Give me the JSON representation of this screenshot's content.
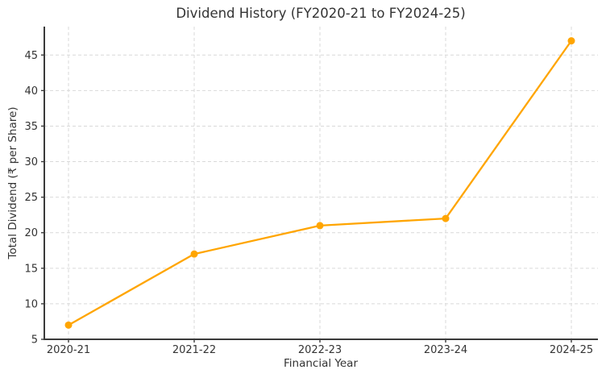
{
  "chart_data": {
    "type": "line",
    "title": "Dividend History (FY2020-21 to FY2024-25)",
    "xlabel": "Financial Year",
    "ylabel": "Total Dividend (₹ per Share)",
    "categories": [
      "2020-21",
      "2021-22",
      "2022-23",
      "2023-24",
      "2024-25"
    ],
    "series": [
      {
        "name": "Total Dividend",
        "values": [
          7,
          17,
          21,
          22,
          47
        ]
      }
    ],
    "ylim": [
      5,
      49
    ],
    "yticks": [
      5,
      10,
      15,
      20,
      25,
      30,
      35,
      40,
      45
    ],
    "grid": true,
    "legend": "none",
    "colors": {
      "line": "#FFA500",
      "marker": "#FFA500",
      "grid": "#d9d9d9",
      "axis": "#3a3a3a",
      "text": "#333333",
      "background": "#ffffff"
    }
  }
}
